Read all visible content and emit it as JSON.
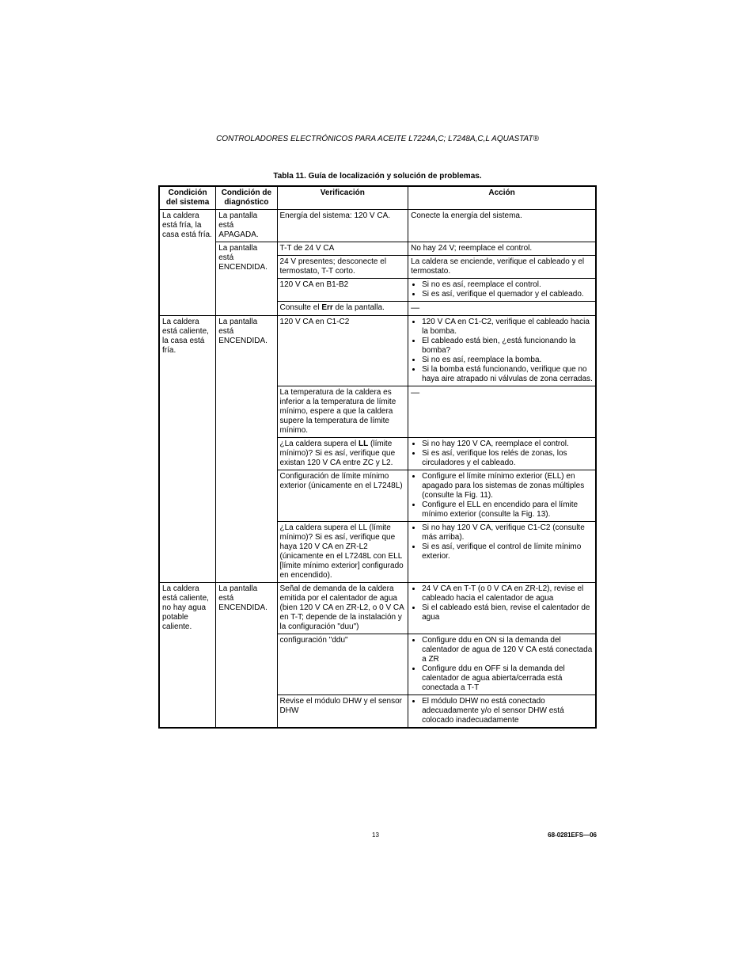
{
  "header": "CONTROLADORES ELECTRÓNICOS PARA ACEITE L7224A,C; L7248A,C,L AQUASTAT®",
  "caption": "Tabla 11. Guía de localización y solución de problemas.",
  "footer": {
    "page": "13",
    "doc": "68-0281EFS—06"
  },
  "columns": {
    "c1": "Condición del sistema",
    "c2": "Condición de diagnóstico",
    "c3": "Verificación",
    "c4": "Acción"
  },
  "group1": {
    "sys": "La caldera está fría, la casa está fría.",
    "diagA": "La pantalla está APAGADA.",
    "diagB": "La pantalla está ENCENDIDA.",
    "r1v": "Energía del sistema: 120 V CA.",
    "r1a": "Conecte la energía del sistema.",
    "r2v": "T-T de 24 V CA",
    "r2a": "No hay 24 V; reemplace el control.",
    "r3v": "24 V presentes; desconecte el termostato, T-T corto.",
    "r3a": "La caldera se enciende, verifique el cableado y el termostato.",
    "r4v": "120 V CA en B1-B2",
    "r4a_items": [
      "Si no es así, reemplace el control.",
      "Si es así, verifique el quemador y el cableado."
    ],
    "r5v_pre": "Consulte el ",
    "r5v_bold": "Err",
    "r5v_post": " de la pantalla.",
    "r5a": "—"
  },
  "group2": {
    "sys": "La caldera está caliente, la casa está fría.",
    "diag": "La pantalla está ENCENDIDA.",
    "r1v": "120 V CA en C1-C2",
    "r1a_items": [
      "120 V CA en C1-C2, verifique el cableado hacia la bomba.",
      "El cableado está bien, ¿está funcionando la bomba?",
      "Si no es así, reemplace la bomba.",
      "Si la bomba está funcionando, verifique que no haya aire atrapado ni válvulas de zona cerradas."
    ],
    "r2v": "La temperatura de la caldera es inferior a la temperatura de límite mínimo, espere a que la caldera supere la temperatura de límite mínimo.",
    "r2a": "—",
    "r3v_pre": "¿La caldera supera el ",
    "r3v_bold": "LL",
    "r3v_post": " (límite mínimo)? Si es así, verifique que existan 120 V CA entre ZC y L2.",
    "r3a_items": [
      "Si no hay 120 V CA, reemplace el control.",
      "Si es así, verifique los relés de zonas, los circuladores y el cableado."
    ],
    "r4v": "Configuración de límite mínimo exterior (únicamente en el L7248L)",
    "r4a_items": [
      "Configure el límite mínimo exterior (ELL) en apagado para los sistemas de zonas múltiples (consulte la Fig. 11).",
      "Configure el ELL en encendido para el límite mínimo exterior (consulte la Fig. 13)."
    ],
    "r5v": "¿La caldera supera el LL (límite mínimo)? Si es así, verifique que haya 120 V CA en ZR-L2 (únicamente en el L7248L con ELL [límite mínimo exterior] configurado en encendido).",
    "r5a_items": [
      "Si no hay 120 V CA, verifique C1-C2 (consulte más arriba).",
      "Si es así, verifique el control de límite mínimo exterior."
    ]
  },
  "group3": {
    "sys": "La caldera está caliente, no hay agua potable caliente.",
    "diag": "La pantalla está ENCENDIDA.",
    "r1v": "Señal de demanda de la caldera emitida por el calentador de agua (bien 120 V CA en ZR-L2, o 0 V CA en T-T; depende de la instalación y la configuración \"duu\")",
    "r1a_items": [
      "24 V CA en T-T (o 0 V CA en ZR-L2), revise el cableado hacia el calentador de agua",
      "Si el cableado está bien, revise el calentador de agua"
    ],
    "r2v": "configuración \"ddu\"",
    "r2a_items": [
      "Configure ddu en ON si la demanda del calentador de agua de 120 V CA está conectada a ZR",
      "Configure ddu en OFF si la demanda del calentador de agua abierta/cerrada está conectada a T-T"
    ],
    "r3v": "Revise el módulo DHW y el sensor DHW",
    "r3a_items": [
      "El módulo DHW no está conectado adecuadamente y/o el sensor DHW está colocado inadecuadamente"
    ]
  }
}
